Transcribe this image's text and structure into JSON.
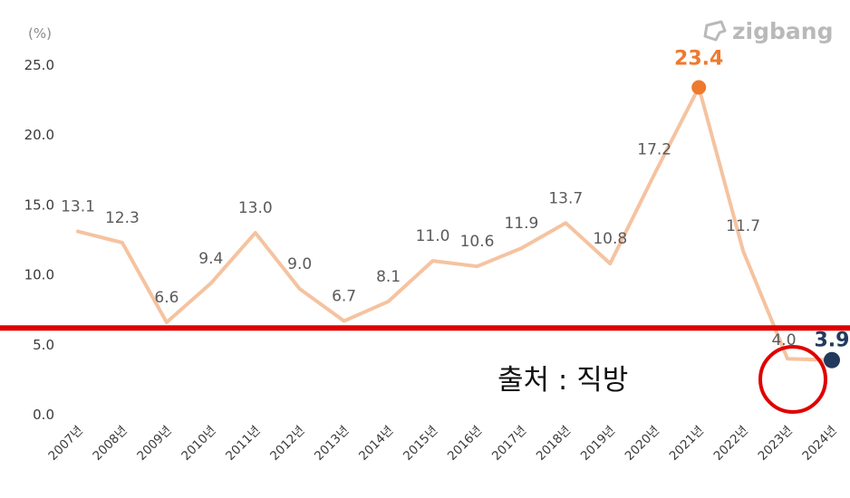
{
  "brand": {
    "name": "zigbang",
    "icon": "zigbang-logo-icon"
  },
  "annotation": {
    "source_text": "출처 : 직방"
  },
  "colors": {
    "line": "#f5c3a0",
    "peak_marker": "#ee7a2e",
    "last_marker": "#233a5e",
    "highlight_line": "#e00000",
    "highlight_circle": "#e00000"
  },
  "chart_data": {
    "type": "line",
    "title": "",
    "xlabel": "",
    "ylabel": "(%)",
    "categories": [
      "2007년",
      "2008년",
      "2009년",
      "2010년",
      "2011년",
      "2012년",
      "2013년",
      "2014년",
      "2015년",
      "2016년",
      "2017년",
      "2018년",
      "2019년",
      "2020년",
      "2021년",
      "2022년",
      "2023년",
      "2024년"
    ],
    "values": [
      13.1,
      12.3,
      6.6,
      9.4,
      13.0,
      9.0,
      6.7,
      8.1,
      11.0,
      10.6,
      11.9,
      13.7,
      10.8,
      17.2,
      23.4,
      11.7,
      4.0,
      3.9
    ],
    "data_labels": [
      "13.1",
      "12.3",
      "6.6",
      "9.4",
      "13.0",
      "9.0",
      "6.7",
      "8.1",
      "11.0",
      "10.6",
      "11.9",
      "13.7",
      "10.8",
      "17.2",
      "23.4",
      "11.7",
      "4.0",
      "3.9"
    ],
    "y_ticks": [
      "0.0",
      "5.0",
      "10.0",
      "15.0",
      "20.0",
      "25.0"
    ],
    "ylim": [
      0,
      25
    ],
    "grid": false,
    "legend": "none",
    "highlight_line_value": 6.2
  }
}
